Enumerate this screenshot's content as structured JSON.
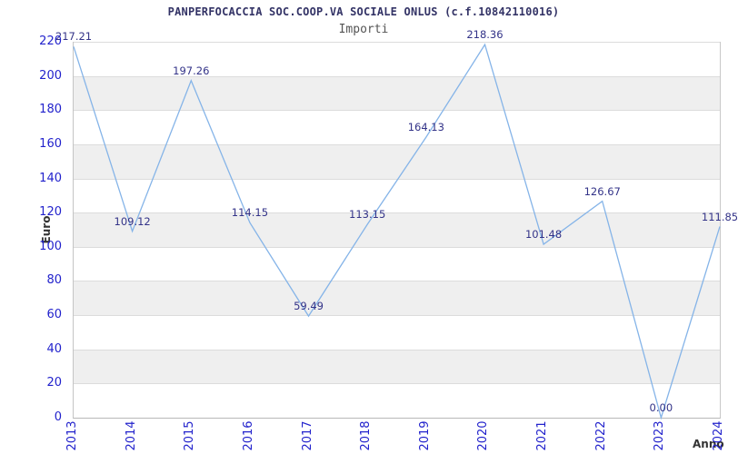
{
  "chart": {
    "title": "PANPERFOCACCIA SOC.COOP.VA SOCIALE ONLUS (c.f.10842110016)",
    "subtitle": "Importi",
    "ylabel": "Euro",
    "xlabel": "Anno"
  },
  "chart_data": {
    "type": "line",
    "title": "PANPERFOCACCIA SOC.COOP.VA SOCIALE ONLUS (c.f.10842110016)",
    "subtitle": "Importi",
    "xlabel": "Anno",
    "ylabel": "Euro",
    "categories": [
      "2013",
      "2014",
      "2015",
      "2016",
      "2017",
      "2018",
      "2019",
      "2020",
      "2021",
      "2022",
      "2023",
      "2024"
    ],
    "values": [
      217.21,
      109.12,
      197.26,
      114.15,
      59.49,
      113.15,
      164.13,
      218.36,
      101.48,
      126.67,
      0.0,
      111.85
    ],
    "point_labels": [
      "217.21",
      "109.12",
      "197.26",
      "114.15",
      "59.49",
      "113.15",
      "164.13",
      "218.36",
      "101.48",
      "126.67",
      "0.00",
      "111.85"
    ],
    "ylim": [
      0,
      220
    ],
    "ytick_step": 20,
    "yticks": [
      "0",
      "20",
      "40",
      "60",
      "80",
      "100",
      "120",
      "140",
      "160",
      "180",
      "200",
      "220"
    ],
    "grid": true,
    "legend": false,
    "alternating_gray_bands": true,
    "band_ranges_gray": [
      [
        180,
        200
      ],
      [
        140,
        160
      ],
      [
        100,
        120
      ],
      [
        60,
        80
      ],
      [
        20,
        40
      ]
    ],
    "colors": {
      "line": "#85b4e8",
      "tick_text": "#2222cc",
      "point_label_text": "#333388",
      "title_text": "#333366",
      "subtitle_text": "#555555",
      "axis_label_text": "#333333",
      "band_fill": "#efefef",
      "grid_line": "#dcdcdc",
      "axis_line": "#c4c4c4",
      "background": "#ffffff"
    }
  }
}
